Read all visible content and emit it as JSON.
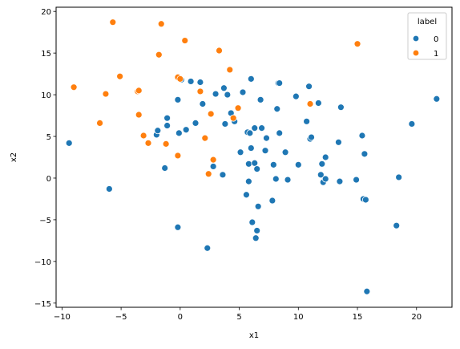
{
  "chart_data": {
    "type": "scatter",
    "xlabel": "x1",
    "ylabel": "x2",
    "xlim": [
      -10.5,
      23.0
    ],
    "ylim": [
      -15.5,
      20.5
    ],
    "xticks": [
      -10,
      -5,
      0,
      5,
      10,
      15,
      20
    ],
    "yticks": [
      -15,
      -10,
      -5,
      0,
      5,
      10,
      15,
      20
    ],
    "grid": false,
    "legend": {
      "title": "label",
      "placement": "top-right",
      "entries": [
        "0",
        "1"
      ]
    },
    "series": [
      {
        "name": "0",
        "color": "#1f77b4",
        "points": [
          [
            -9.4,
            4.2
          ],
          [
            -6.0,
            -1.3
          ],
          [
            -2.0,
            5.2
          ],
          [
            -1.9,
            5.7
          ],
          [
            -1.3,
            1.2
          ],
          [
            -1.1,
            6.3
          ],
          [
            -1.1,
            7.2
          ],
          [
            -0.2,
            9.4
          ],
          [
            -0.1,
            5.4
          ],
          [
            -0.2,
            -5.9
          ],
          [
            0.1,
            11.8
          ],
          [
            0.5,
            5.8
          ],
          [
            0.9,
            11.6
          ],
          [
            1.3,
            6.6
          ],
          [
            1.7,
            11.5
          ],
          [
            1.9,
            8.9
          ],
          [
            2.3,
            -8.4
          ],
          [
            2.8,
            1.4
          ],
          [
            3.0,
            10.1
          ],
          [
            3.6,
            0.4
          ],
          [
            3.7,
            10.8
          ],
          [
            3.8,
            6.5
          ],
          [
            4.0,
            10.0
          ],
          [
            4.3,
            7.8
          ],
          [
            4.6,
            6.8
          ],
          [
            5.1,
            3.1
          ],
          [
            5.3,
            10.3
          ],
          [
            5.6,
            -2.0
          ],
          [
            5.7,
            5.5
          ],
          [
            5.8,
            1.7
          ],
          [
            5.8,
            -0.4
          ],
          [
            5.9,
            5.4
          ],
          [
            6.0,
            3.6
          ],
          [
            6.0,
            11.9
          ],
          [
            6.1,
            -5.3
          ],
          [
            6.3,
            6.0
          ],
          [
            6.3,
            1.8
          ],
          [
            6.5,
            1.1
          ],
          [
            6.4,
            -7.2
          ],
          [
            6.5,
            -6.3
          ],
          [
            6.6,
            -3.4
          ],
          [
            6.8,
            9.4
          ],
          [
            6.9,
            6.0
          ],
          [
            7.2,
            3.3
          ],
          [
            7.3,
            4.8
          ],
          [
            7.8,
            -2.7
          ],
          [
            7.9,
            1.6
          ],
          [
            8.1,
            -0.1
          ],
          [
            8.2,
            8.3
          ],
          [
            8.3,
            11.4
          ],
          [
            8.4,
            11.4
          ],
          [
            8.4,
            5.4
          ],
          [
            8.9,
            3.1
          ],
          [
            9.1,
            -0.2
          ],
          [
            9.8,
            9.8
          ],
          [
            10.0,
            1.6
          ],
          [
            10.7,
            6.8
          ],
          [
            10.9,
            11.0
          ],
          [
            11.0,
            4.7
          ],
          [
            11.1,
            4.9
          ],
          [
            11.7,
            9.0
          ],
          [
            11.9,
            0.4
          ],
          [
            12.0,
            1.7
          ],
          [
            12.1,
            -0.5
          ],
          [
            12.3,
            2.5
          ],
          [
            12.3,
            -0.1
          ],
          [
            13.4,
            4.3
          ],
          [
            13.5,
            -0.4
          ],
          [
            13.6,
            8.5
          ],
          [
            14.9,
            -0.2
          ],
          [
            15.4,
            5.1
          ],
          [
            15.5,
            -2.5
          ],
          [
            15.6,
            2.9
          ],
          [
            15.7,
            -2.6
          ],
          [
            15.8,
            -13.6
          ],
          [
            18.3,
            -5.7
          ],
          [
            18.5,
            0.1
          ],
          [
            19.6,
            6.5
          ],
          [
            21.7,
            9.5
          ]
        ]
      },
      {
        "name": "1",
        "color": "#ff7f0e",
        "points": [
          [
            -9.0,
            10.9
          ],
          [
            -6.8,
            6.6
          ],
          [
            -6.3,
            10.1
          ],
          [
            -5.7,
            18.7
          ],
          [
            -5.1,
            12.2
          ],
          [
            -3.6,
            10.4
          ],
          [
            -3.5,
            10.5
          ],
          [
            -3.5,
            7.6
          ],
          [
            -3.1,
            5.1
          ],
          [
            -2.7,
            4.2
          ],
          [
            -1.8,
            14.8
          ],
          [
            -1.6,
            18.5
          ],
          [
            -1.2,
            4.1
          ],
          [
            -0.2,
            2.7
          ],
          [
            -0.2,
            12.1
          ],
          [
            0.0,
            11.9
          ],
          [
            0.4,
            16.5
          ],
          [
            1.7,
            10.4
          ],
          [
            2.1,
            4.8
          ],
          [
            2.4,
            0.5
          ],
          [
            2.6,
            7.7
          ],
          [
            2.8,
            2.2
          ],
          [
            3.3,
            15.3
          ],
          [
            4.2,
            13.0
          ],
          [
            4.5,
            7.2
          ],
          [
            4.9,
            8.4
          ],
          [
            11.0,
            8.9
          ],
          [
            15.0,
            16.1
          ]
        ]
      }
    ]
  }
}
